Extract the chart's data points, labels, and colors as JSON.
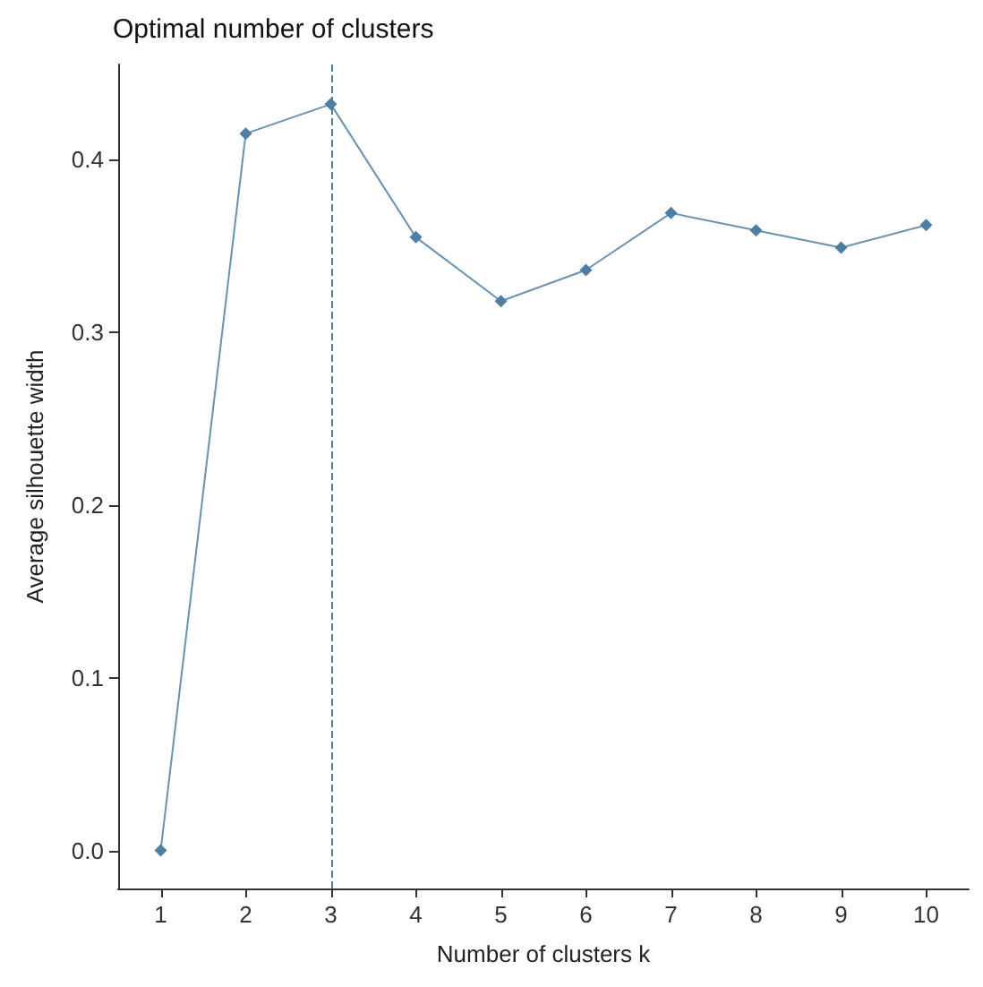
{
  "chart_data": {
    "type": "line",
    "title": "Optimal number of clusters",
    "xlabel": "Number of clusters k",
    "ylabel": "Average silhouette width",
    "categories": [
      "1",
      "2",
      "3",
      "4",
      "5",
      "6",
      "7",
      "8",
      "9",
      "10"
    ],
    "series": [
      {
        "color": "#4e7fa3",
        "values": [
          0.0,
          0.415,
          0.432,
          0.355,
          0.318,
          0.336,
          0.369,
          0.359,
          0.349,
          0.362
        ]
      }
    ],
    "ylim": [
      -0.022,
      0.455
    ],
    "yticks": [
      {
        "value": 0,
        "label": "0.0"
      },
      0.1,
      0.2,
      0.3,
      0.4
    ],
    "ref_lines": [
      {
        "axis": "x",
        "value": "3",
        "line_style": "dashed",
        "color": "#4e7fa3"
      }
    ],
    "grid": false,
    "marker": "diamond",
    "line_style": "solid"
  }
}
